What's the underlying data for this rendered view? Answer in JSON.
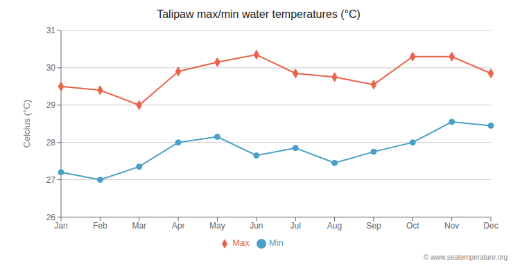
{
  "chart_data": {
    "type": "line",
    "title": "Talipaw max/min water temperatures (°C)",
    "ylabel": "Celcius (°C)",
    "categories": [
      "Jan",
      "Feb",
      "Mar",
      "Apr",
      "May",
      "Jun",
      "Jul",
      "Aug",
      "Sep",
      "Oct",
      "Nov",
      "Dec"
    ],
    "series": [
      {
        "name": "Max",
        "color": "#e8644a",
        "marker": "diamond",
        "values": [
          29.5,
          29.4,
          29.0,
          29.9,
          30.15,
          30.35,
          29.85,
          29.75,
          29.55,
          30.3,
          30.3,
          29.85
        ]
      },
      {
        "name": "Min",
        "color": "#4a9fc8",
        "marker": "circle",
        "values": [
          27.2,
          27.0,
          27.35,
          28.0,
          28.15,
          27.65,
          27.85,
          27.45,
          27.75,
          28.0,
          28.55,
          28.45
        ]
      }
    ],
    "ylim": [
      26,
      31
    ],
    "yticks": [
      26,
      27,
      28,
      29,
      30,
      31
    ],
    "grid": true,
    "legend": "bottom",
    "annotations": [
      "© www.seatemperature.org"
    ]
  }
}
